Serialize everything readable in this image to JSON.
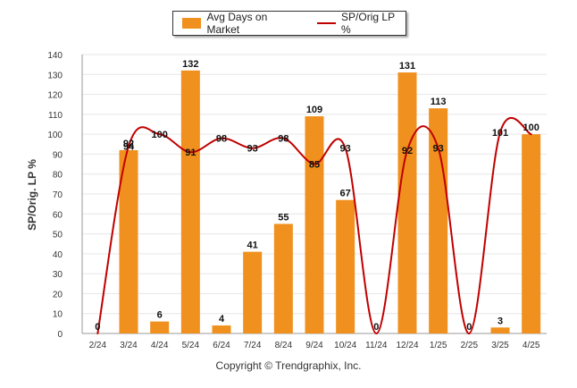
{
  "chart_data": {
    "type": "bar",
    "categories": [
      "2/24",
      "3/24",
      "4/24",
      "5/24",
      "6/24",
      "7/24",
      "8/24",
      "9/24",
      "10/24",
      "11/24",
      "12/24",
      "1/25",
      "2/25",
      "3/25",
      "4/25"
    ],
    "series": [
      {
        "name": "Avg Days on Market",
        "kind": "bar",
        "color": "#f0901e",
        "values": [
          0,
          92,
          6,
          132,
          4,
          41,
          55,
          109,
          67,
          0,
          131,
          113,
          0,
          3,
          100
        ]
      },
      {
        "name": "SP/Orig LP %",
        "kind": "line",
        "color": "#c00000",
        "values": [
          0,
          94,
          100,
          91,
          98,
          93,
          98,
          85,
          93,
          0,
          92,
          93,
          0,
          101,
          100
        ]
      }
    ],
    "ylabel": "SP/Orig. LP %",
    "xlabel": "",
    "ylim": [
      0,
      140
    ],
    "yticks": [
      0,
      10,
      20,
      30,
      40,
      50,
      60,
      70,
      80,
      90,
      100,
      110,
      120,
      130,
      140
    ],
    "grid": true,
    "legend_position": "top-center"
  },
  "footer": {
    "copyright": "Copyright © Trendgraphix, Inc."
  }
}
